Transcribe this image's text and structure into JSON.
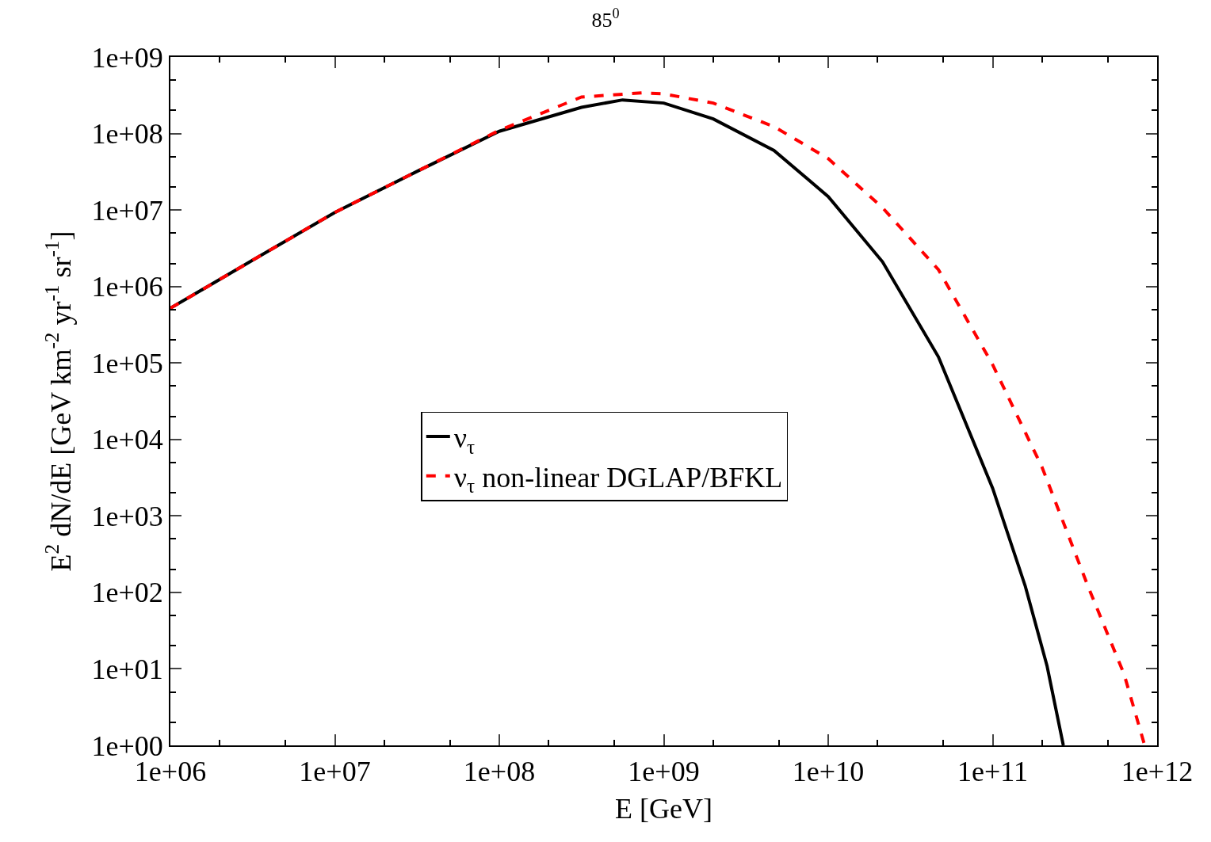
{
  "chart_data": {
    "type": "line",
    "title": "85$^{0}$",
    "xlabel": "E [GeV]",
    "ylabel": "E$^{2}$ dN/dE [GeV km$^{-2}$ yr$^{-1}$ sr$^{-1}$]",
    "log": "xy",
    "legend": "center",
    "marker": "none",
    "xlim": [
      1000000.0,
      1000000000000.0
    ],
    "ylim": [
      1,
      1000000000.0
    ],
    "xticks": [
      {
        "value": 1000000.0,
        "label": "1e+06"
      },
      {
        "value": 10000000.0,
        "label": "1e+07"
      },
      {
        "value": 100000000.0,
        "label": "1e+08"
      },
      {
        "value": 1000000000.0,
        "label": "1e+09"
      },
      {
        "value": 10000000000.0,
        "label": "1e+10"
      },
      {
        "value": 100000000000.0,
        "label": "1e+11"
      },
      {
        "value": 1000000000000.0,
        "label": "1e+12"
      }
    ],
    "yticks": [
      {
        "value": 1,
        "label": "1e+00"
      },
      {
        "value": 10,
        "label": "1e+01"
      },
      {
        "value": 100,
        "label": "1e+02"
      },
      {
        "value": 1000,
        "label": "1e+03"
      },
      {
        "value": 10000,
        "label": "1e+04"
      },
      {
        "value": 100000,
        "label": "1e+05"
      },
      {
        "value": 1000000,
        "label": "1e+06"
      },
      {
        "value": 10000000,
        "label": "1e+07"
      },
      {
        "value": 100000000,
        "label": "1e+08"
      },
      {
        "value": 1000000000,
        "label": "1e+09"
      }
    ],
    "series": [
      {
        "name": "ν$_{τ}$",
        "color": "#000000",
        "line_style": "solid",
        "x": [
          1000000.0,
          3160000.0,
          10000000.0,
          31600000.0,
          100000000.0,
          316000000.0,
          562000000.0,
          1000000000.0,
          2000000000.0,
          4680000000.0,
          10000000000.0,
          21400000000.0,
          46800000000.0,
          100000000000.0,
          158000000000.0,
          214000000000.0,
          269000000000.0
        ],
        "values": [
          520000.0,
          2200000.0,
          9300000.0,
          32000000.0,
          107000000.0,
          220000000.0,
          275000000.0,
          250000000.0,
          155000000.0,
          60000000.0,
          15000000.0,
          2100000.0,
          120000.0,
          2300.0,
          120.0,
          11,
          1
        ]
      },
      {
        "name": "ν$_{τ}$ non-linear DGLAP/BFKL",
        "color": "#ff0000",
        "line_style": "dashed",
        "x": [
          1000000.0,
          3160000.0,
          10000000.0,
          31600000.0,
          100000000.0,
          316000000.0,
          740000000.0,
          1000000000.0,
          2000000000.0,
          4680000000.0,
          10000000000.0,
          21400000000.0,
          46800000000.0,
          100000000000.0,
          200000000000.0,
          380000000000.0,
          630000000000.0,
          840000000000.0
        ],
        "values": [
          520000.0,
          2200000.0,
          9300000.0,
          32000000.0,
          110000000.0,
          300000000.0,
          340000000.0,
          330000000.0,
          250000000.0,
          123000000.0,
          47000000.0,
          10700000.0,
          1660000.0,
          95000.0,
          4300.0,
          120.0,
          8.5,
          1
        ]
      }
    ]
  }
}
